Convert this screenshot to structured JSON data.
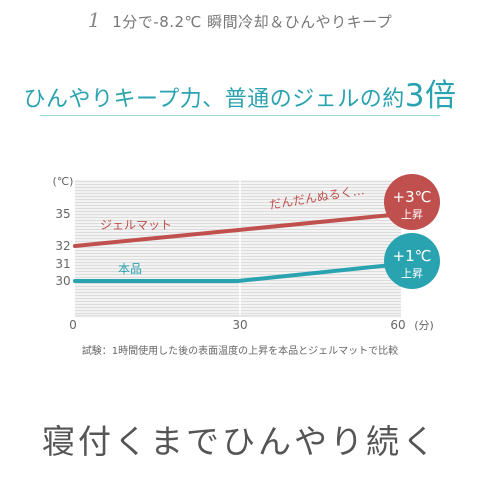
{
  "header": {
    "step_number": "1",
    "step_text": "1分で-8.2℃ 瞬間冷却＆ひんやりキープ",
    "headline_text": "ひんやりキープ力、普通のジェルの約",
    "headline_big": "3倍"
  },
  "chart_data": {
    "type": "line",
    "xlabel": "",
    "ylabel": "",
    "x_unit": "(分)",
    "y_unit": "(℃)",
    "x_ticks": [
      "0",
      "30",
      "60"
    ],
    "y_ticks": [
      "35",
      "32",
      "31",
      "30"
    ],
    "xlim": [
      0,
      60
    ],
    "series": [
      {
        "name": "ジェルマット",
        "x": [
          0,
          60
        ],
        "y": [
          32,
          35
        ],
        "color": "#c0504d",
        "annotation": "だんだんぬるく…",
        "badge_main": "+3℃",
        "badge_sub": "上昇"
      },
      {
        "name": "本品",
        "x": [
          0,
          30,
          60
        ],
        "y": [
          30,
          30,
          31
        ],
        "color": "#2aa3b0",
        "badge_main": "+1℃",
        "badge_sub": "上昇"
      }
    ],
    "grid": "horizontal-stripes",
    "caption": "試験：1時間使用した後の表面温度の上昇を本品とジェルマットで比較"
  },
  "footer": {
    "tagline": "寝付くまでひんやり続く"
  }
}
